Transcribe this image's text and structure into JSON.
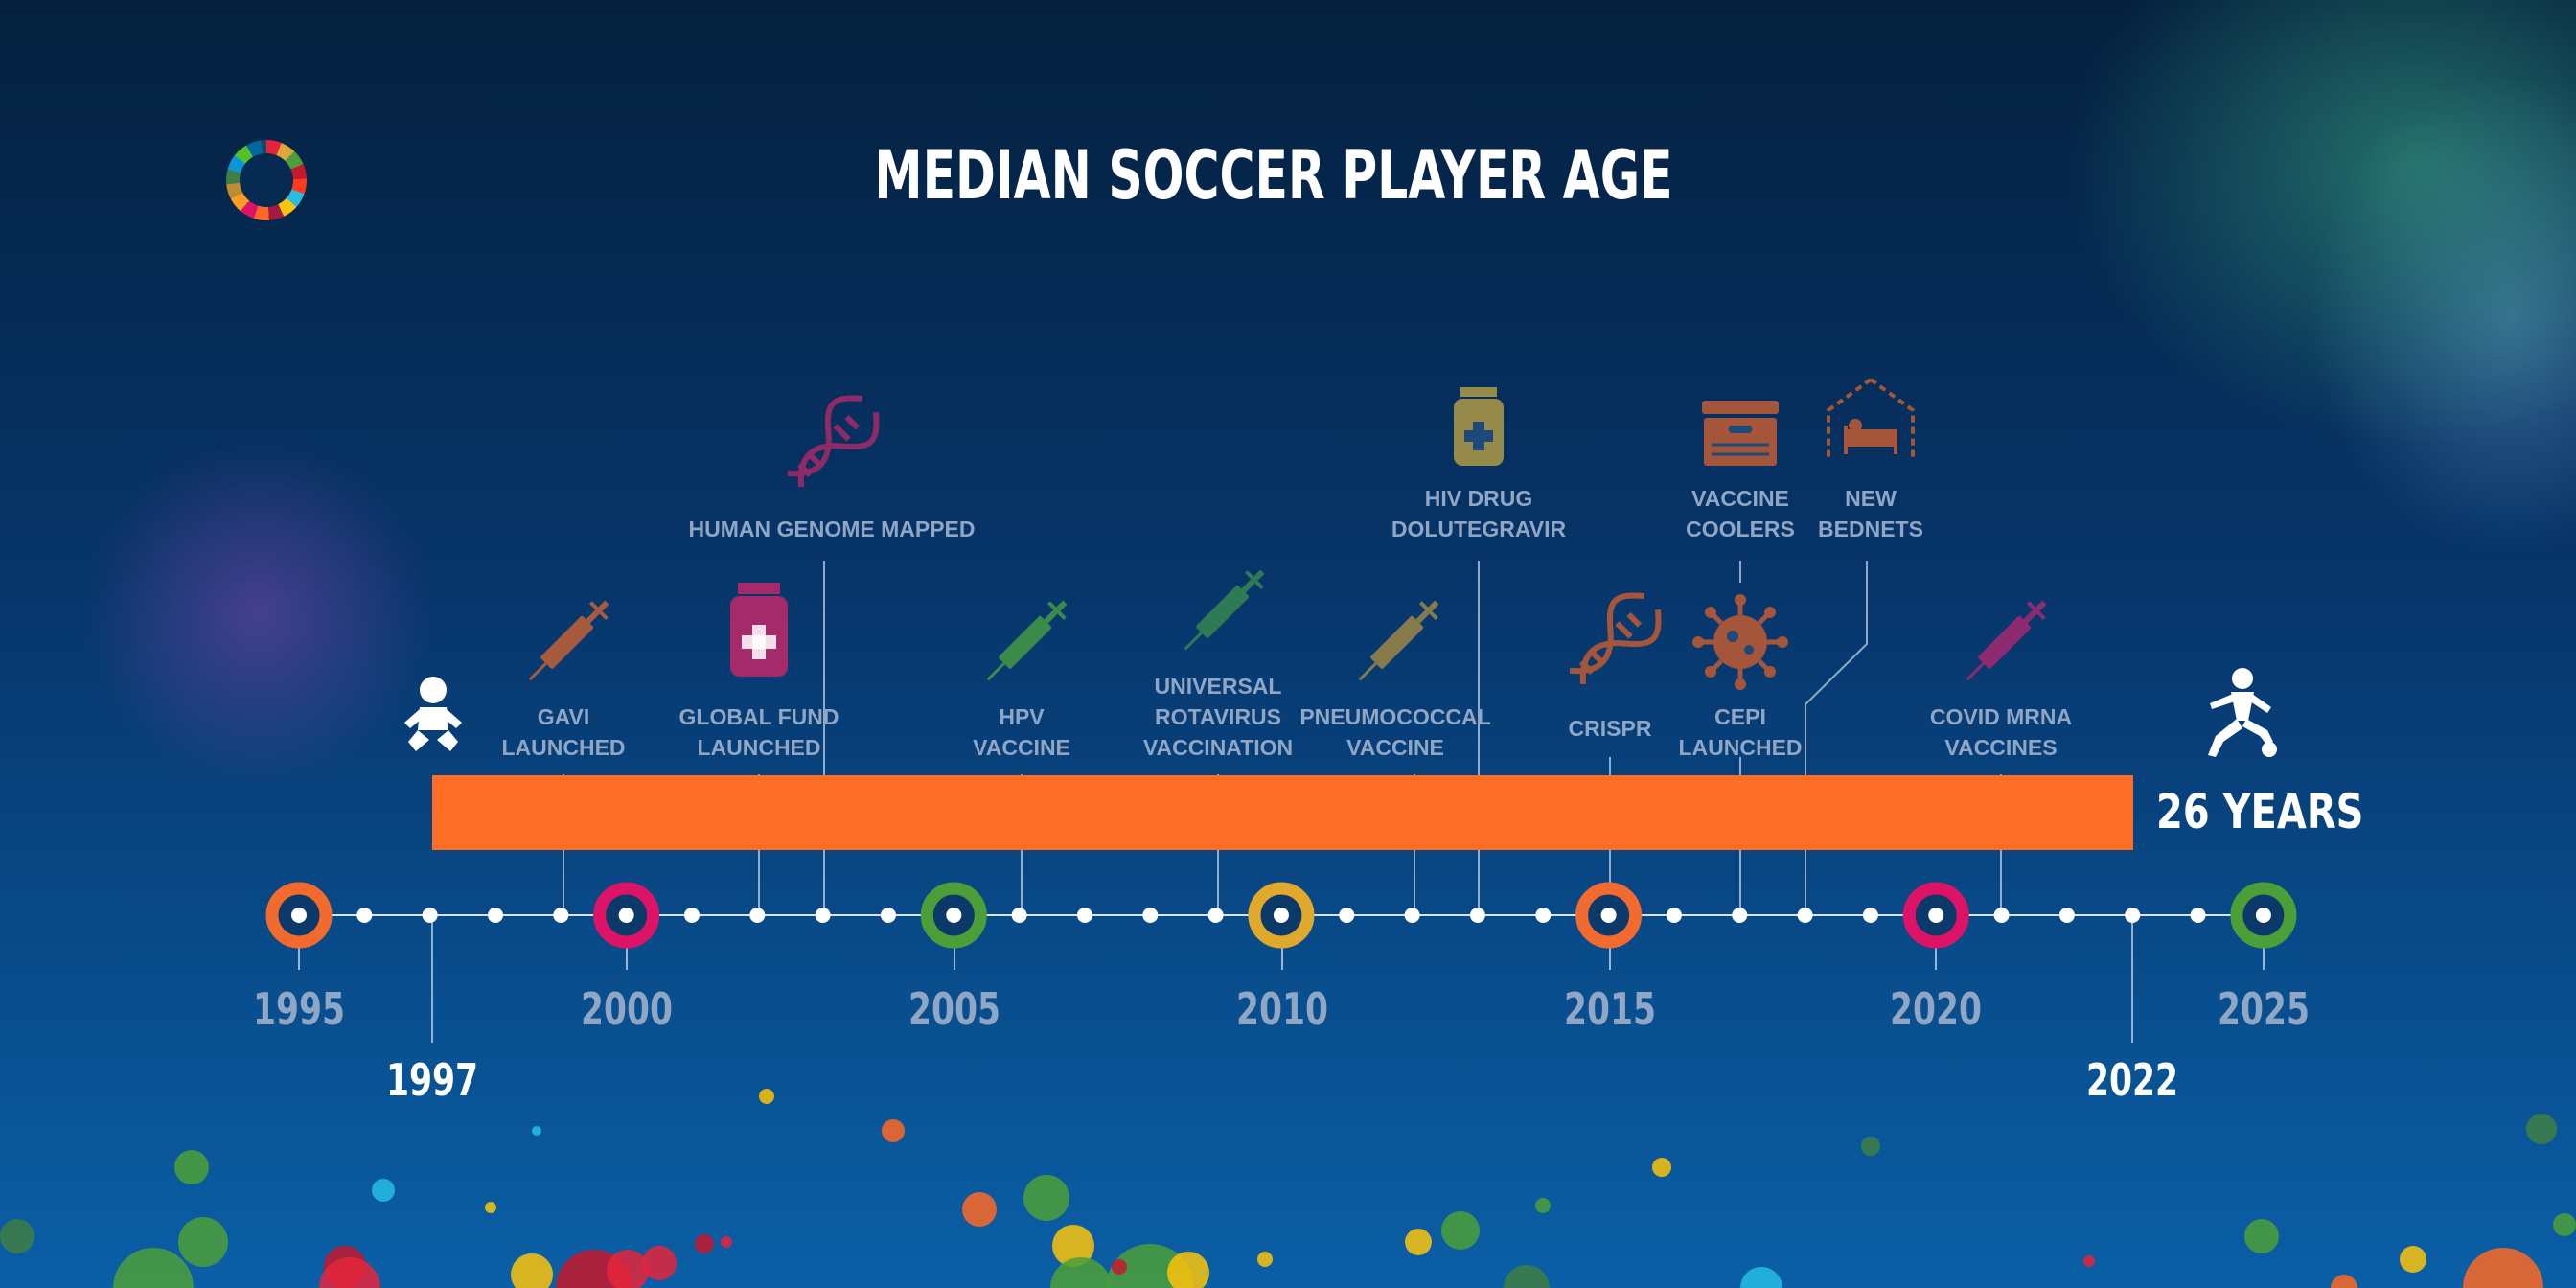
{
  "title": "MEDIAN SOCCER PLAYER AGE",
  "logo_icon": "sdg-wheel-icon",
  "span_label": "26 YEARS",
  "start_year_label": "1997",
  "end_year_label": "2022",
  "start_icon": "baby-icon",
  "end_icon": "soccer-player-icon",
  "axis_years": [
    {
      "label": "1995",
      "color": "#f26a2e"
    },
    {
      "label": "2000",
      "color": "#dd1367"
    },
    {
      "label": "2005",
      "color": "#4c9f38"
    },
    {
      "label": "2010",
      "color": "#e0a92b"
    },
    {
      "label": "2015",
      "color": "#f26a2e"
    },
    {
      "label": "2020",
      "color": "#dd1367"
    },
    {
      "label": "2025",
      "color": "#4c9f38"
    }
  ],
  "events": [
    {
      "label": "GAVI\nLAUNCHED",
      "icon": "syringe-icon",
      "color": "#a85a3c"
    },
    {
      "label": "GLOBAL FUND\nLAUNCHED",
      "icon": "medicine-bottle-icon",
      "color": "#a52a6a"
    },
    {
      "label": "HUMAN GENOME MAPPED",
      "icon": "dna-icon",
      "color": "#8e2a66"
    },
    {
      "label": "HPV\nVACCINE",
      "icon": "syringe-icon",
      "color": "#3a8a4a"
    },
    {
      "label": "UNIVERSAL\nROTAVIRUS\nVACCINATION",
      "icon": "syringe-icon",
      "color": "#2e7a54"
    },
    {
      "label": "PNEUMOCOCCAL\nVACCINE",
      "icon": "syringe-icon",
      "color": "#857a4a"
    },
    {
      "label": "HIV DRUG\nDOLUTEGRAVIR",
      "icon": "medicine-bottle-icon",
      "color": "#958a4a"
    },
    {
      "label": "CRISPR",
      "icon": "dna-icon",
      "color": "#a5563a"
    },
    {
      "label": "CEPI\nLAUNCHED",
      "icon": "virus-icon",
      "color": "#a5563a"
    },
    {
      "label": "VACCINE\nCOOLERS",
      "icon": "cooler-box-icon",
      "color": "#a5563a"
    },
    {
      "label": "NEW\nBEDNETS",
      "icon": "bednet-icon",
      "color": "#a5563a"
    },
    {
      "label": "COVID MRNA\nVACCINES",
      "icon": "syringe-icon",
      "color": "#8e2a70"
    }
  ],
  "bubble_colors": [
    "#e5243b",
    "#4c9f38",
    "#fcc30b",
    "#fd6925",
    "#c5192d",
    "#26bde2",
    "#3f7e44",
    "#dda63a"
  ]
}
